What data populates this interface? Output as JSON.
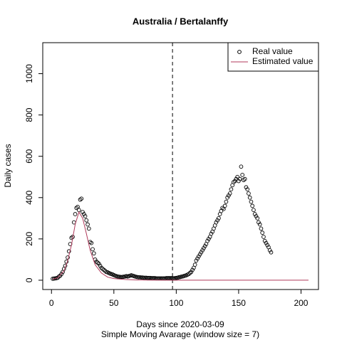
{
  "chart_data": {
    "type": "scatter",
    "title": "Australia / Bertalanffy",
    "xlabel": "Days since 2020-03-09",
    "subtitle": "Simple Moving Avarage (window size = 7)",
    "ylabel": "Daily cases",
    "xlim": [
      -7,
      214
    ],
    "ylim": [
      -45,
      1150
    ],
    "xticks": [
      0,
      50,
      100,
      150,
      200
    ],
    "yticks": [
      0,
      200,
      400,
      600,
      800,
      1000
    ],
    "vline": 97,
    "legend": "topright",
    "series": [
      {
        "name": "Real value",
        "color": "#000000",
        "kind": "points",
        "x": [
          1,
          2,
          3,
          4,
          5,
          6,
          7,
          8,
          9,
          10,
          11,
          12,
          13,
          14,
          15,
          16,
          17,
          18,
          19,
          20,
          21,
          22,
          23,
          24,
          25,
          26,
          27,
          28,
          29,
          30,
          31,
          32,
          33,
          34,
          35,
          36,
          37,
          38,
          39,
          40,
          41,
          42,
          43,
          44,
          45,
          46,
          47,
          48,
          49,
          50,
          51,
          52,
          53,
          54,
          55,
          56,
          57,
          58,
          59,
          60,
          61,
          62,
          63,
          64,
          65,
          66,
          67,
          68,
          69,
          70,
          71,
          72,
          73,
          74,
          75,
          76,
          77,
          78,
          79,
          80,
          81,
          82,
          83,
          84,
          85,
          86,
          87,
          88,
          89,
          90,
          91,
          92,
          93,
          94,
          95,
          96,
          97,
          98,
          99,
          100,
          101,
          102,
          103,
          104,
          105,
          106,
          107,
          108,
          109,
          110,
          111,
          112,
          113,
          114,
          115,
          116,
          117,
          118,
          119,
          120,
          121,
          122,
          123,
          124,
          125,
          126,
          127,
          128,
          129,
          130,
          131,
          132,
          133,
          134,
          135,
          136,
          137,
          138,
          139,
          140,
          141,
          142,
          143,
          144,
          145,
          146,
          147,
          148,
          149,
          150,
          151,
          152,
          153,
          154,
          155,
          156,
          157,
          158,
          159,
          160,
          161,
          162,
          163,
          164,
          165,
          166,
          167,
          168,
          169,
          170,
          171,
          172,
          173,
          174,
          175,
          176
        ],
        "values": [
          7,
          8,
          9,
          10,
          12,
          18,
          22,
          30,
          40,
          55,
          70,
          90,
          110,
          140,
          175,
          205,
          210,
          280,
          320,
          350,
          355,
          340,
          390,
          395,
          330,
          320,
          310,
          290,
          270,
          250,
          185,
          180,
          150,
          130,
          100,
          90,
          85,
          80,
          70,
          60,
          55,
          50,
          45,
          40,
          38,
          35,
          32,
          30,
          28,
          25,
          22,
          20,
          18,
          17,
          16,
          15,
          16,
          17,
          18,
          20,
          18,
          20,
          22,
          24,
          22,
          20,
          18,
          16,
          15,
          14,
          14,
          13,
          13,
          12,
          12,
          12,
          11,
          11,
          11,
          10,
          10,
          10,
          10,
          9,
          9,
          9,
          9,
          9,
          9,
          9,
          9,
          10,
          10,
          10,
          10,
          10,
          10,
          9,
          10,
          11,
          12,
          14,
          15,
          17,
          18,
          20,
          22,
          24,
          27,
          30,
          35,
          40,
          50,
          60,
          75,
          95,
          105,
          115,
          125,
          135,
          145,
          155,
          165,
          175,
          190,
          200,
          210,
          225,
          235,
          250,
          265,
          280,
          290,
          300,
          320,
          335,
          350,
          345,
          360,
          380,
          400,
          410,
          420,
          440,
          460,
          475,
          480,
          490,
          500,
          480,
          490,
          550,
          510,
          485,
          490,
          450,
          440,
          420,
          400,
          380,
          360,
          340,
          320,
          310,
          300,
          280,
          270,
          250,
          230,
          210,
          190,
          180,
          170,
          160,
          145,
          135
        ]
      },
      {
        "name": "Estimated value",
        "color": "#b03a5b",
        "kind": "line",
        "x": [
          1,
          5,
          10,
          13,
          16,
          19,
          22,
          25,
          28,
          31,
          35,
          40,
          45,
          50,
          60,
          70,
          80,
          96,
          206
        ],
        "values": [
          5,
          12,
          45,
          95,
          170,
          270,
          330,
          300,
          225,
          145,
          75,
          35,
          15,
          8,
          3,
          1,
          0.5,
          0.2,
          0
        ]
      }
    ]
  }
}
